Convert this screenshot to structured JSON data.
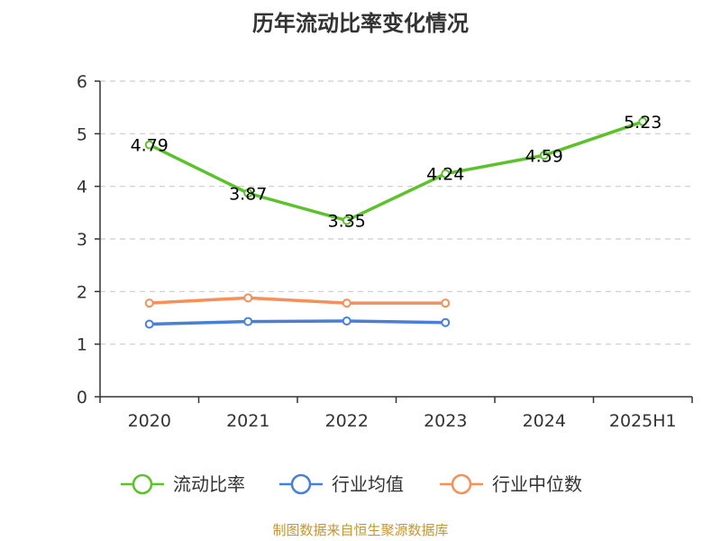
{
  "title": "历年流动比率变化情况",
  "source": "制图数据来自恒生聚源数据库",
  "chart_data": {
    "type": "line",
    "title": "历年流动比率变化情况",
    "xlabel": "",
    "ylabel": "",
    "categories": [
      "2020",
      "2021",
      "2022",
      "2023",
      "2024",
      "2025H1"
    ],
    "ylim": [
      0,
      6
    ],
    "yticks": [
      0,
      1,
      2,
      3,
      4,
      5,
      6
    ],
    "grid": true,
    "legend_position": "bottom",
    "series": [
      {
        "name": "流动比率",
        "color": "#5cc22c",
        "values": [
          4.79,
          3.87,
          3.35,
          4.24,
          4.59,
          5.23
        ],
        "show_labels": true
      },
      {
        "name": "行业均值",
        "color": "#4a7fd8",
        "values": [
          1.38,
          1.43,
          1.44,
          1.41,
          null,
          null
        ],
        "show_labels": false
      },
      {
        "name": "行业中位数",
        "color": "#f5905a",
        "values": [
          1.78,
          1.88,
          1.78,
          1.78,
          null,
          null
        ],
        "show_labels": false
      }
    ]
  }
}
